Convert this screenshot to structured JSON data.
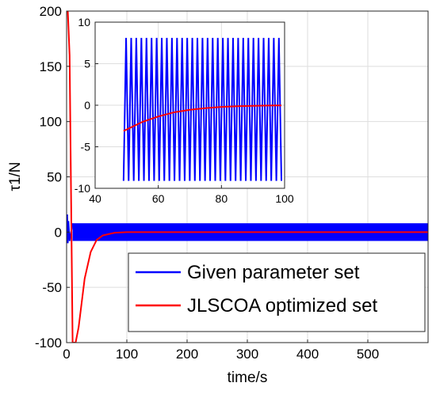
{
  "chart_data": [
    {
      "type": "line",
      "xlabel": "time/s",
      "ylabel": "τ1/N",
      "xlim": [
        0,
        600
      ],
      "ylim": [
        -100,
        200
      ],
      "x_ticks": [
        0,
        100,
        200,
        300,
        400,
        500
      ],
      "y_ticks": [
        -100,
        -50,
        0,
        50,
        100,
        150,
        200
      ],
      "grid": true,
      "legend_position": "bottom-right",
      "series": [
        {
          "name": "Given parameter set",
          "color": "#0000ff",
          "description_points": {
            "x": [
              0,
              1,
              2,
              3,
              5,
              10,
              20,
              100,
              600
            ],
            "y": [
              0,
              16,
              -10,
              10,
              -8,
              8,
              8,
              8,
              8
            ]
          },
          "oscillation_amplitude": 8
        },
        {
          "name": "JLSCOA optimized set",
          "color": "#ff0000",
          "x": [
            0,
            2,
            5,
            10,
            15,
            20,
            30,
            40,
            50,
            60,
            80,
            100,
            600
          ],
          "y": [
            200,
            200,
            160,
            -100,
            -100,
            -86,
            -42,
            -18,
            -7,
            -3,
            -0.6,
            0,
            0
          ]
        }
      ]
    },
    {
      "type": "line",
      "inset": true,
      "xlim": [
        40,
        100
      ],
      "ylim": [
        -10,
        10
      ],
      "x_ticks": [
        40,
        60,
        80,
        100
      ],
      "y_ticks": [
        -10,
        -5,
        0,
        5,
        10
      ],
      "grid": true,
      "series": [
        {
          "color": "#0000ff",
          "x_range": [
            49,
            99
          ],
          "oscillation_amplitude": 8.6,
          "oscillation_center": -0.5,
          "cycles": 31
        },
        {
          "color": "#ff0000",
          "x": [
            49,
            55,
            60,
            65,
            70,
            75,
            80,
            85,
            90,
            95,
            99
          ],
          "y": [
            -3.1,
            -2.0,
            -1.35,
            -0.85,
            -0.55,
            -0.35,
            -0.2,
            -0.12,
            -0.07,
            -0.04,
            -0.02
          ]
        }
      ]
    }
  ]
}
